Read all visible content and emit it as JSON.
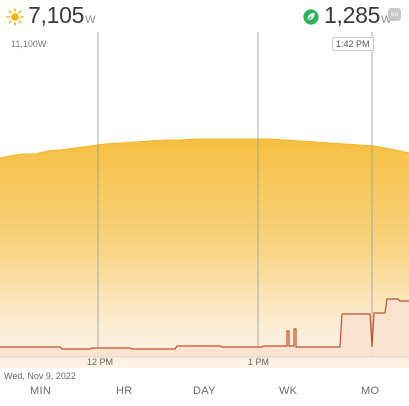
{
  "solar": {
    "icon": "sun-icon",
    "value": "7,105",
    "unit": "W",
    "color": "#f4b30f"
  },
  "usage": {
    "icon": "leaf-icon",
    "value": "1,285",
    "unit": "W",
    "color": "#2fb35a"
  },
  "expand_button": {
    "icon": "expand-icon",
    "label": "oo"
  },
  "chart": {
    "max_label": "11,100W",
    "cursor_time": "1:42 PM",
    "x_ticks": [
      "12 PM",
      "1 PM"
    ],
    "date": "Wed, Nov 9, 2022",
    "fill_color": "#f6c245",
    "usage_line_color": "#c0502e"
  },
  "nav": {
    "items": [
      "MIN",
      "HR",
      "DAY",
      "WK",
      "MO"
    ]
  }
}
